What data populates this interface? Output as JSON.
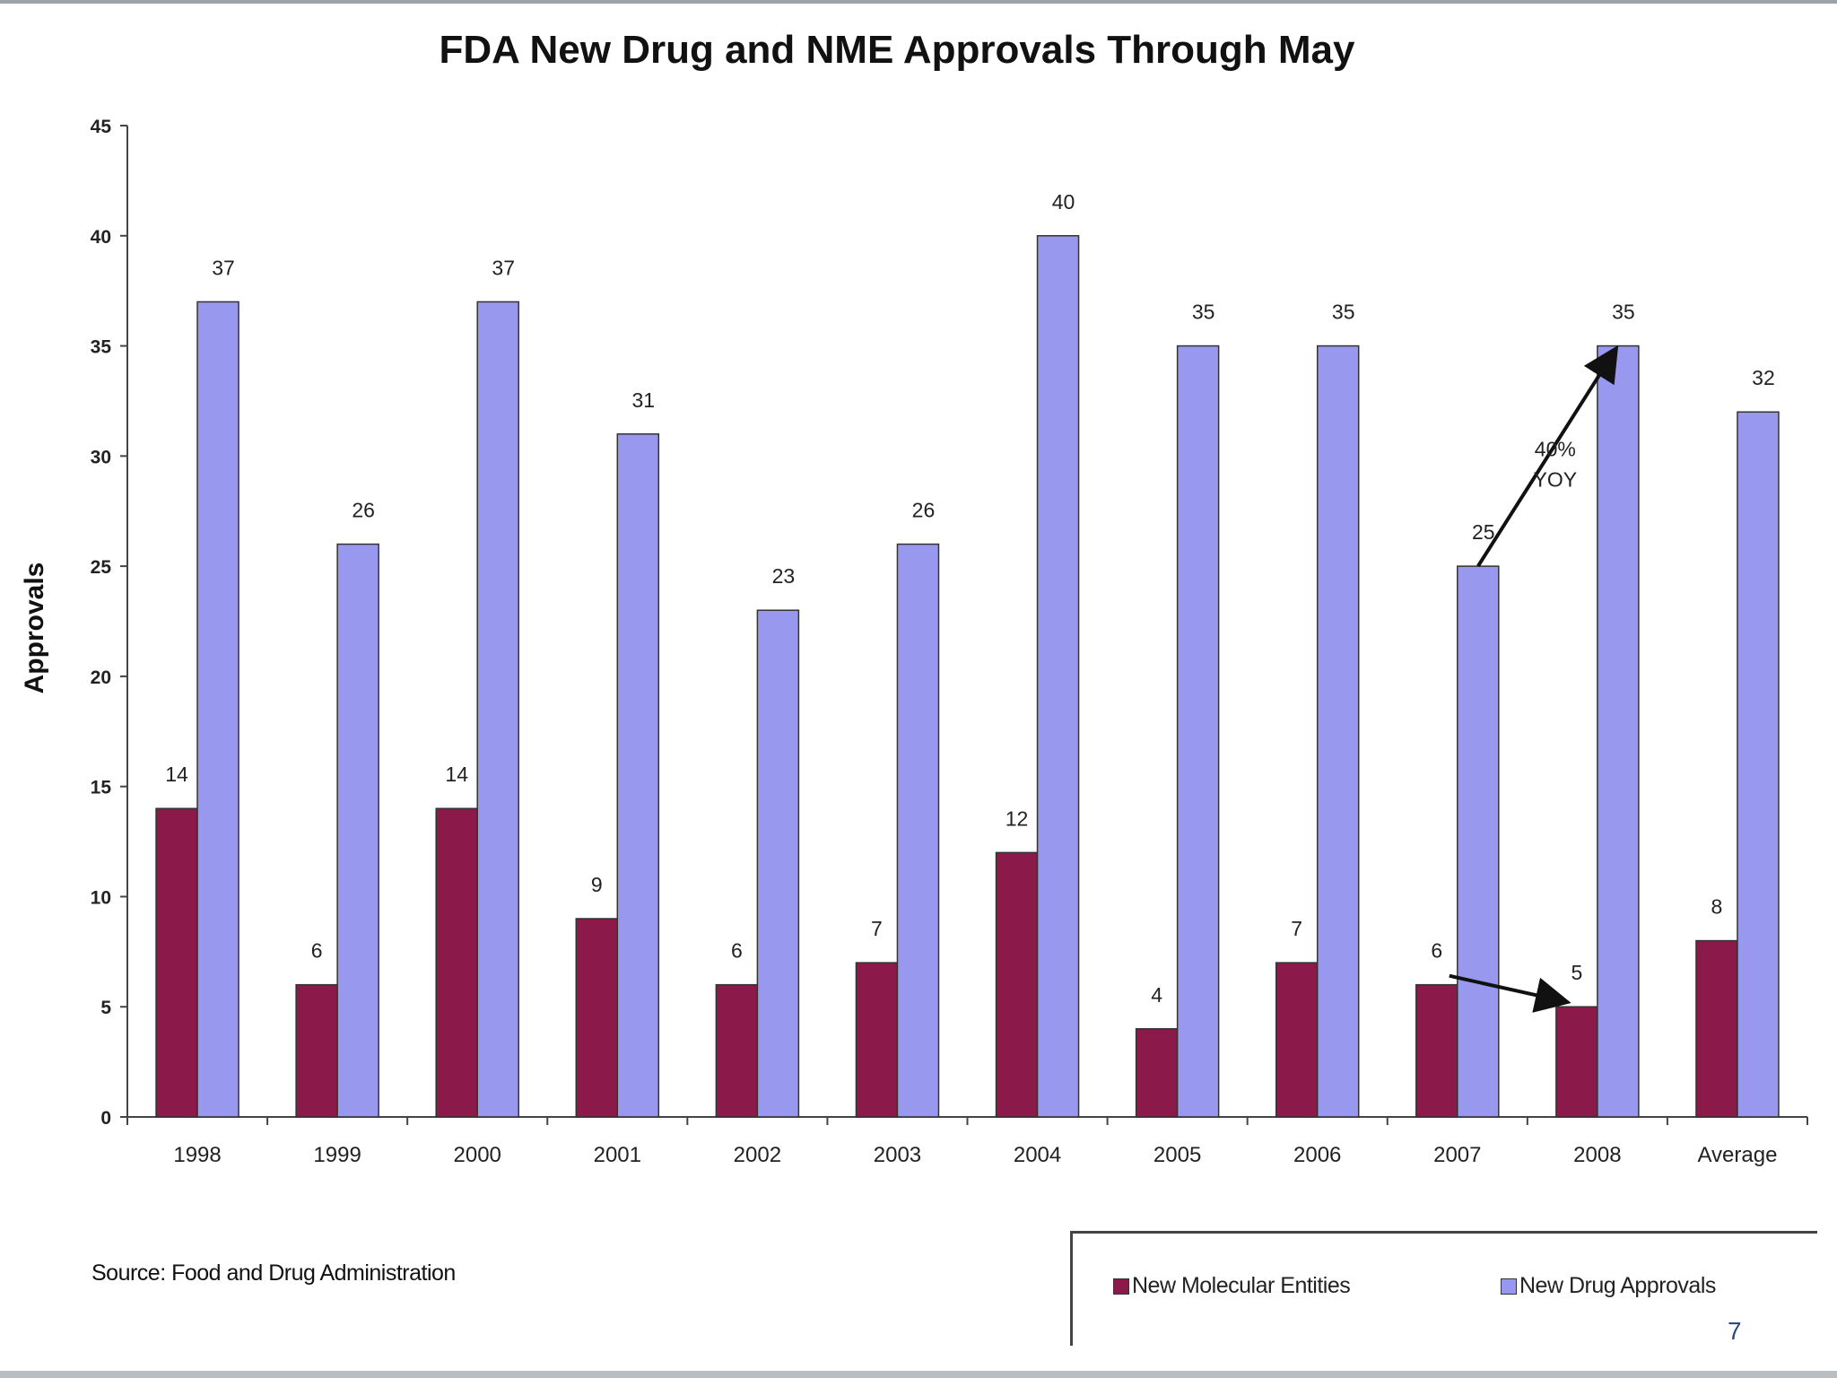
{
  "chart_data": {
    "type": "bar",
    "title": "FDA New Drug and NME Approvals Through May",
    "xlabel": "",
    "ylabel": "Approvals",
    "ylim": [
      0,
      45
    ],
    "yticks": [
      0,
      5,
      10,
      15,
      20,
      25,
      30,
      35,
      40,
      45
    ],
    "grid": false,
    "legend_position": "bottom-right",
    "categories": [
      "1998",
      "1999",
      "2000",
      "2001",
      "2002",
      "2003",
      "2004",
      "2005",
      "2006",
      "2007",
      "2008",
      "Average"
    ],
    "series": [
      {
        "name": "New Molecular Entities",
        "color": "#8b1a4a",
        "values": [
          14,
          6,
          14,
          9,
          6,
          7,
          12,
          4,
          7,
          6,
          5,
          8
        ],
        "labels": [
          "14",
          "6",
          "14",
          "9",
          "6",
          "7",
          "12",
          "4",
          "7",
          "6",
          "5",
          "8"
        ]
      },
      {
        "name": "New Drug Approvals",
        "color": "#9898ee",
        "values": [
          37,
          26,
          37,
          31,
          23,
          26,
          40,
          35,
          35,
          25,
          35,
          32
        ],
        "labels": [
          "37",
          "26",
          "37",
          "31",
          "23",
          "26",
          "40",
          "35",
          "35",
          "25",
          "35",
          "32"
        ]
      }
    ],
    "annotations": [
      {
        "text_lines": [
          "40%",
          "YOY"
        ],
        "from": {
          "series": 1,
          "category": "2007",
          "value": 25
        },
        "to": {
          "series": 1,
          "category": "2008",
          "value": 35
        }
      },
      {
        "text_lines": [],
        "from": {
          "series": 0,
          "category": "2007",
          "value": 6
        },
        "to": {
          "series": 0,
          "category": "2008",
          "value": 5
        }
      }
    ]
  },
  "source": "Source: Food and Drug Administration",
  "legend": {
    "nme_label": "New Molecular Entities",
    "nda_label": "New Drug Approvals"
  },
  "page_number": "7"
}
